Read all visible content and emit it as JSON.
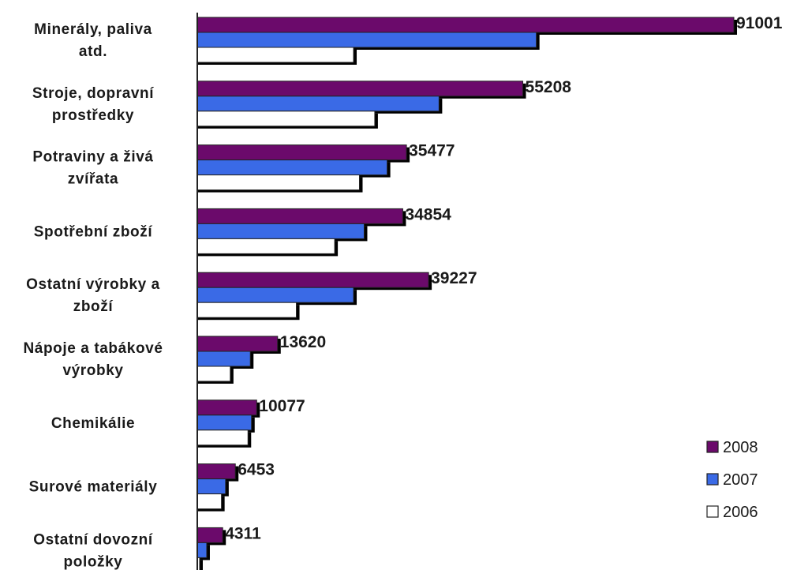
{
  "chart_data": {
    "type": "bar",
    "orientation": "horizontal",
    "categories": [
      [
        "Minerály, paliva",
        "atd."
      ],
      [
        "Stroje, dopravní",
        "prostředky"
      ],
      [
        "Potraviny a živá",
        "zvířata"
      ],
      [
        "Spotřební zboží"
      ],
      [
        "Ostatní výrobky a",
        "zboží"
      ],
      [
        "Nápoje a tabákové",
        "výrobky"
      ],
      [
        "Chemikálie"
      ],
      [
        "Surové materiály"
      ],
      [
        "Ostatní dovozní",
        "položky"
      ]
    ],
    "series": [
      {
        "name": "2008",
        "color": "#6b0a6b",
        "values": [
          91001,
          55208,
          35477,
          34854,
          39227,
          13620,
          10077,
          6453,
          4311
        ]
      },
      {
        "name": "2007",
        "color": "#3a6ae6",
        "values": [
          57500,
          41000,
          32200,
          28300,
          26500,
          9000,
          9200,
          4800,
          1600
        ]
      },
      {
        "name": "2006",
        "color": "#ffffff",
        "values": [
          26500,
          30100,
          27500,
          23300,
          16800,
          5600,
          8600,
          4100,
          400
        ]
      }
    ],
    "data_labels": [
      "91001",
      "55208",
      "35477",
      "34854",
      "39227",
      "13620",
      "10077",
      "6453",
      "4311"
    ],
    "legend": {
      "position": "bottom-right",
      "entries": [
        "2008",
        "2007",
        "2006"
      ]
    },
    "xlim": [
      0,
      91001
    ],
    "grid": false,
    "title": "",
    "xlabel": "",
    "ylabel": ""
  }
}
